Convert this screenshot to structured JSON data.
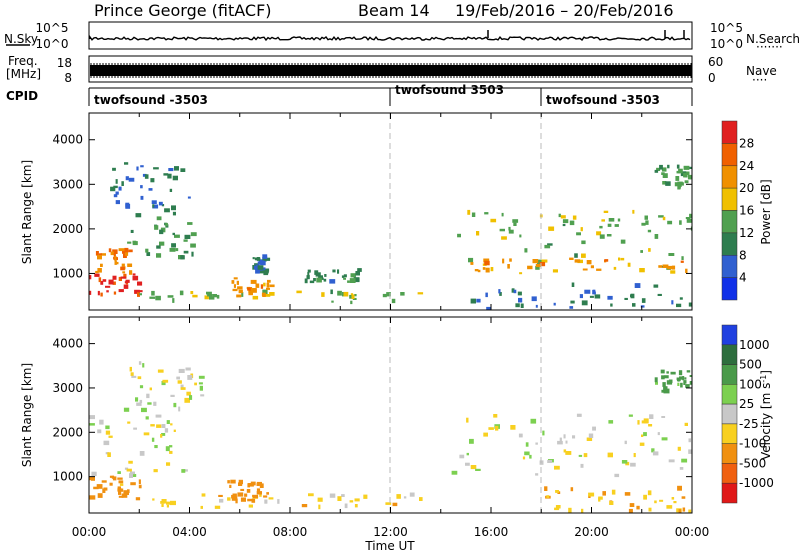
{
  "header": {
    "station": "Prince George (fitACF)",
    "beam": "Beam 14",
    "date_range": "19/Feb/2016 – 20/Feb/2016"
  },
  "noise_panel": {
    "left_label": "N.Sky",
    "right_label": "N.Search",
    "right_marker": "·······",
    "left_ticks": [
      "10^5",
      "10^0"
    ],
    "right_ticks": [
      "10^5",
      "10^0"
    ]
  },
  "freq_panel": {
    "left_label_1": "Freq.",
    "left_label_2": "[MHz]",
    "right_label": "Nave",
    "right_marker": "····",
    "left_ticks": [
      "18",
      "8"
    ],
    "right_ticks": [
      "60",
      "0"
    ]
  },
  "cpid_panel": {
    "label": "CPID",
    "segments": [
      {
        "start_hour": 0,
        "end_hour": 12,
        "label": "twofsound -3503"
      },
      {
        "start_hour": 12,
        "end_hour": 18,
        "label": "twofsound 3503"
      },
      {
        "start_hour": 18,
        "end_hour": 24,
        "label": "twofsound -3503"
      }
    ]
  },
  "time_axis": {
    "label": "Time UT",
    "ticks": [
      "00:00",
      "04:00",
      "08:00",
      "12:00",
      "16:00",
      "20:00",
      "00:00"
    ]
  },
  "chart_data": [
    {
      "type": "heatmap",
      "title": "Power",
      "xlabel": "Time UT",
      "ylabel": "Slant Range [km]",
      "xlim": [
        0,
        24
      ],
      "ylim": [
        180,
        4600
      ],
      "yticks": [
        1000,
        2000,
        3000,
        4000
      ],
      "colorbar": {
        "label": "Power [dB]",
        "ticks": [
          "4",
          "8",
          "12",
          "16",
          "20",
          "24",
          "28"
        ],
        "range": [
          0,
          30
        ],
        "colors": [
          "#1030e8",
          "#3060d0",
          "#2e7d4f",
          "#50a050",
          "#f0c000",
          "#f09000",
          "#f06000",
          "#e02020"
        ]
      },
      "features": [
        {
          "t": [
            0.0,
            2.0
          ],
          "r": [
            500,
            1000
          ],
          "value": 28
        },
        {
          "t": [
            0.0,
            1.6
          ],
          "r": [
            1000,
            1600
          ],
          "value": 22
        },
        {
          "t": [
            1.5,
            4.2
          ],
          "r": [
            1350,
            2500
          ],
          "value": 12
        },
        {
          "t": [
            0.8,
            4.0
          ],
          "r": [
            2500,
            3500
          ],
          "value": 8
        },
        {
          "t": [
            2.0,
            13.5
          ],
          "r": [
            350,
            600
          ],
          "value": 14
        },
        {
          "t": [
            5.5,
            7.2
          ],
          "r": [
            450,
            900
          ],
          "value": 20
        },
        {
          "t": [
            6.5,
            7.0
          ],
          "r": [
            1000,
            1400
          ],
          "value": 8
        },
        {
          "t": [
            8.5,
            11.0
          ],
          "r": [
            800,
            1100
          ],
          "value": 10
        },
        {
          "t": [
            14.3,
            24.0
          ],
          "r": [
            1000,
            2400
          ],
          "value": 14
        },
        {
          "t": [
            15.0,
            24.0
          ],
          "r": [
            1050,
            1350
          ],
          "value": 20
        },
        {
          "t": [
            15.0,
            24.0
          ],
          "r": [
            200,
            750
          ],
          "value": 8
        },
        {
          "t": [
            22.5,
            24.0
          ],
          "r": [
            2900,
            3400
          ],
          "value": 12
        }
      ]
    },
    {
      "type": "heatmap",
      "title": "Velocity",
      "xlabel": "Time UT",
      "ylabel": "Slant Range [km]",
      "xlim": [
        0,
        24
      ],
      "ylim": [
        180,
        4600
      ],
      "yticks": [
        1000,
        2000,
        3000,
        4000
      ],
      "colorbar": {
        "label": "Velocity [m s^-1]",
        "ticks": [
          "1000",
          "500",
          "100",
          "25",
          "-25",
          "-100",
          "-500",
          "-1000"
        ],
        "colors": [
          "#2040e0",
          "#2e6e3e",
          "#4a9a4a",
          "#7cd050",
          "#c8c8c8",
          "#f8d020",
          "#f09010",
          "#f06010",
          "#e01818"
        ]
      },
      "features": [
        {
          "t": [
            0.0,
            2.0
          ],
          "r": [
            500,
            1000
          ],
          "value": -150
        },
        {
          "t": [
            0.0,
            3.8
          ],
          "r": [
            1000,
            2600
          ],
          "value": 0
        },
        {
          "t": [
            1.5,
            4.5
          ],
          "r": [
            2600,
            3600
          ],
          "value": 0
        },
        {
          "t": [
            2.0,
            13.5
          ],
          "r": [
            300,
            600
          ],
          "value": -50
        },
        {
          "t": [
            5.5,
            7.2
          ],
          "r": [
            450,
            900
          ],
          "value": -250
        },
        {
          "t": [
            14.3,
            24.0
          ],
          "r": [
            1000,
            2400
          ],
          "value": 0
        },
        {
          "t": [
            18.0,
            24.0
          ],
          "r": [
            200,
            750
          ],
          "value": -100
        },
        {
          "t": [
            22.5,
            24.0
          ],
          "r": [
            2900,
            3400
          ],
          "value": 150
        }
      ]
    }
  ]
}
